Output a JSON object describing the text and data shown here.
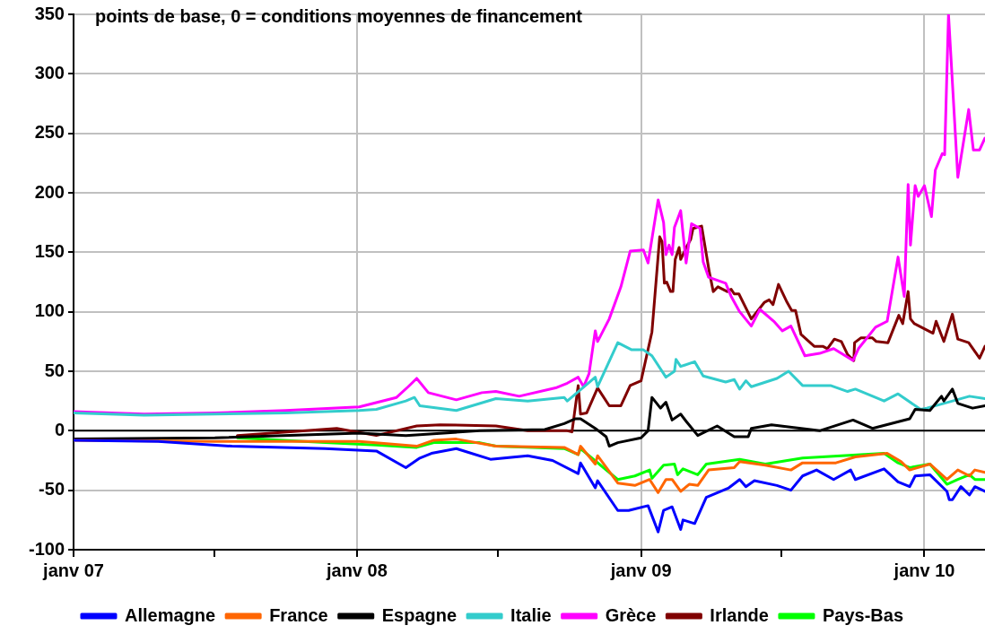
{
  "chart_data": {
    "type": "line",
    "title": "points de base, 0 = conditions moyennes de financement",
    "xlim": [
      "2007-01-01",
      "2010-03-20"
    ],
    "xticks": [
      {
        "value": "2007-01",
        "label": "janv 07"
      },
      {
        "value": "2007-07",
        "label": null
      },
      {
        "value": "2008-01",
        "label": "janv 08"
      },
      {
        "value": "2008-07",
        "label": null
      },
      {
        "value": "2009-01",
        "label": "janv 09"
      },
      {
        "value": "2009-07",
        "label": null
      },
      {
        "value": "2010-01",
        "label": "janv 10"
      }
    ],
    "ylim": [
      -100,
      350
    ],
    "yticks": [
      -100,
      -50,
      0,
      50,
      100,
      150,
      200,
      250,
      300,
      350
    ],
    "grid": true,
    "legend": "bottom",
    "marker": "none",
    "line_style": "solid",
    "ref_lines": [
      {
        "axis": "y",
        "value": 0,
        "color": "#000000"
      }
    ],
    "series": [
      {
        "name": "Allemagne",
        "color": "#0000ff",
        "x": [
          "2007-01-01",
          "2007-04-20",
          "2007-07-24",
          "2007-11-21",
          "2008-01-26",
          "2008-03-04",
          "2008-03-22",
          "2008-04-06",
          "2008-05-08",
          "2008-06-21",
          "2008-08-08",
          "2008-09-09",
          "2008-10-12",
          "2008-10-15",
          "2008-11-03",
          "2008-11-06",
          "2008-12-02",
          "2008-12-16",
          "2009-01-10",
          "2009-01-23",
          "2009-01-30",
          "2009-02-10",
          "2009-02-21",
          "2009-02-24",
          "2009-03-11",
          "2009-03-26",
          "2009-04-24",
          "2009-05-08",
          "2009-05-16",
          "2009-05-27",
          "2009-06-25",
          "2009-07-13",
          "2009-07-28",
          "2009-08-15",
          "2009-09-06",
          "2009-09-28",
          "2009-10-04",
          "2009-11-10",
          "2009-11-28",
          "2009-12-13",
          "2009-12-20",
          "2010-01-08",
          "2010-01-30",
          "2010-02-02",
          "2010-02-06",
          "2010-02-17",
          "2010-02-28",
          "2010-03-07",
          "2010-03-20"
        ],
        "values": [
          -8,
          -9,
          -13,
          -15,
          -17,
          -31,
          -23,
          -19,
          -15,
          -24,
          -21,
          -25,
          -36,
          -27,
          -48,
          -42,
          -67,
          -67,
          -63,
          -85,
          -67,
          -64,
          -83,
          -75,
          -78,
          -56,
          -48,
          -41,
          -47,
          -42,
          -46,
          -50,
          -38,
          -33,
          -41,
          -33,
          -41,
          -32,
          -43,
          -47,
          -38,
          -37,
          -51,
          -58,
          -58,
          -47,
          -54,
          -47,
          -51
        ]
      },
      {
        "name": "France",
        "color": "#ff6600",
        "x": [
          "2007-01-01",
          "2007-07-02",
          "2008-01-04",
          "2008-03-18",
          "2008-04-09",
          "2008-05-08",
          "2008-06-28",
          "2008-09-24",
          "2008-10-12",
          "2008-10-15",
          "2008-11-03",
          "2008-11-06",
          "2008-12-02",
          "2008-12-24",
          "2009-01-12",
          "2009-01-23",
          "2009-02-02",
          "2009-02-10",
          "2009-02-21",
          "2009-03-04",
          "2009-03-15",
          "2009-03-29",
          "2009-05-01",
          "2009-05-08",
          "2009-06-10",
          "2009-07-13",
          "2009-07-28",
          "2009-09-09",
          "2009-10-04",
          "2009-11-14",
          "2009-12-02",
          "2009-12-13",
          "2010-01-08",
          "2010-01-30",
          "2010-02-13",
          "2010-02-28",
          "2010-03-07",
          "2010-03-20"
        ],
        "values": [
          -8,
          -9,
          -9,
          -13,
          -8,
          -7,
          -13,
          -14,
          -20,
          -13,
          -28,
          -21,
          -44,
          -46,
          -41,
          -52,
          -41,
          -41,
          -51,
          -45,
          -46,
          -33,
          -31,
          -26,
          -29,
          -33,
          -27,
          -27,
          -22,
          -19,
          -26,
          -33,
          -28,
          -41,
          -33,
          -38,
          -33,
          -35
        ]
      },
      {
        "name": "Espagne",
        "color": "#000000",
        "x": [
          "2007-01-01",
          "2007-07-02",
          "2008-01-04",
          "2008-03-04",
          "2008-06-07",
          "2008-08-30",
          "2008-09-24",
          "2008-10-08",
          "2008-10-15",
          "2008-11-03",
          "2008-11-17",
          "2008-11-21",
          "2008-12-02",
          "2009-01-01",
          "2009-01-10",
          "2009-01-15",
          "2009-01-26",
          "2009-02-02",
          "2009-02-10",
          "2009-02-21",
          "2009-02-28",
          "2009-03-15",
          "2009-04-09",
          "2009-05-01",
          "2009-05-19",
          "2009-05-23",
          "2009-06-18",
          "2009-08-19",
          "2009-10-01",
          "2009-10-26",
          "2009-12-13",
          "2009-12-20",
          "2010-01-08",
          "2010-01-23",
          "2010-01-26",
          "2010-02-06",
          "2010-02-13",
          "2010-03-04",
          "2010-03-20"
        ],
        "values": [
          -7,
          -6,
          -2,
          -4,
          0,
          1,
          6,
          10,
          10,
          2,
          -5,
          -13,
          -10,
          -6,
          0,
          28,
          19,
          24,
          9,
          14,
          8,
          -4,
          4,
          -5,
          -5,
          2,
          5,
          0,
          9,
          2,
          10,
          18,
          17,
          29,
          25,
          35,
          23,
          19,
          21
        ]
      },
      {
        "name": "Italie",
        "color": "#33cccc",
        "x": [
          "2007-01-01",
          "2007-04-02",
          "2007-07-02",
          "2007-10-01",
          "2008-01-04",
          "2008-01-26",
          "2008-03-04",
          "2008-03-15",
          "2008-03-22",
          "2008-05-08",
          "2008-06-28",
          "2008-08-08",
          "2008-09-24",
          "2008-09-28",
          "2008-11-03",
          "2008-11-06",
          "2008-12-02",
          "2008-12-20",
          "2009-01-04",
          "2009-01-15",
          "2009-02-02",
          "2009-02-13",
          "2009-02-15",
          "2009-02-21",
          "2009-03-11",
          "2009-03-22",
          "2009-04-20",
          "2009-05-01",
          "2009-05-08",
          "2009-05-16",
          "2009-05-23",
          "2009-06-25",
          "2009-07-10",
          "2009-07-28",
          "2009-09-02",
          "2009-09-24",
          "2009-10-04",
          "2009-11-10",
          "2009-11-28",
          "2009-12-27",
          "2010-01-04",
          "2010-01-26",
          "2010-02-28",
          "2010-03-20"
        ],
        "values": [
          15,
          13,
          14,
          15,
          17,
          18,
          25,
          28,
          21,
          17,
          27,
          25,
          28,
          25,
          45,
          37,
          74,
          68,
          68,
          63,
          45,
          50,
          60,
          54,
          58,
          46,
          41,
          43,
          35,
          42,
          37,
          44,
          50,
          38,
          38,
          33,
          35,
          25,
          31,
          18,
          19,
          23,
          29,
          27
        ]
      },
      {
        "name": "Grèce",
        "color": "#ff00ff",
        "x": [
          "2007-01-01",
          "2007-04-02",
          "2007-07-02",
          "2007-10-01",
          "2008-01-04",
          "2008-02-21",
          "2008-03-07",
          "2008-03-18",
          "2008-04-02",
          "2008-05-08",
          "2008-06-10",
          "2008-06-28",
          "2008-07-28",
          "2008-09-13",
          "2008-09-28",
          "2008-10-12",
          "2008-10-19",
          "2008-10-26",
          "2008-11-03",
          "2008-11-06",
          "2008-11-21",
          "2008-12-06",
          "2008-12-18",
          "2009-01-04",
          "2009-01-10",
          "2009-01-23",
          "2009-01-30",
          "2009-02-02",
          "2009-02-06",
          "2009-02-10",
          "2009-02-13",
          "2009-02-21",
          "2009-02-28",
          "2009-03-07",
          "2009-03-18",
          "2009-03-22",
          "2009-03-29",
          "2009-04-20",
          "2009-04-27",
          "2009-05-08",
          "2009-05-23",
          "2009-06-03",
          "2009-06-21",
          "2009-07-02",
          "2009-07-13",
          "2009-07-31",
          "2009-08-19",
          "2009-09-06",
          "2009-10-01",
          "2009-10-08",
          "2009-10-30",
          "2009-11-14",
          "2009-11-28",
          "2009-12-06",
          "2009-12-11",
          "2009-12-14",
          "2009-12-20",
          "2009-12-24",
          "2010-01-01",
          "2010-01-10",
          "2010-01-15",
          "2010-01-24",
          "2010-01-27",
          "2010-02-01",
          "2010-02-13",
          "2010-02-27",
          "2010-03-05",
          "2010-03-13",
          "2010-03-20"
        ],
        "values": [
          16,
          14,
          15,
          17,
          20,
          28,
          37,
          44,
          32,
          26,
          32,
          33,
          29,
          36,
          40,
          45,
          37,
          48,
          84,
          75,
          94,
          121,
          151,
          152,
          141,
          194,
          175,
          148,
          156,
          148,
          171,
          185,
          141,
          174,
          170,
          142,
          129,
          124,
          113,
          100,
          88,
          102,
          92,
          84,
          88,
          63,
          65,
          69,
          59,
          69,
          87,
          92,
          146,
          113,
          207,
          156,
          206,
          197,
          206,
          180,
          219,
          233,
          232,
          350,
          213,
          270,
          236,
          236,
          246
        ]
      },
      {
        "name": "Irlande",
        "color": "#800000",
        "x": [
          "2007-07-31",
          "2007-12-06",
          "2008-01-26",
          "2008-03-18",
          "2008-04-17",
          "2008-06-28",
          "2008-08-08",
          "2008-09-28",
          "2008-10-04",
          "2008-10-12",
          "2008-10-15",
          "2008-10-23",
          "2008-11-06",
          "2008-11-21",
          "2008-12-06",
          "2008-12-18",
          "2009-01-01",
          "2009-01-15",
          "2009-01-25",
          "2009-01-28",
          "2009-01-31",
          "2009-02-03",
          "2009-02-08",
          "2009-02-11",
          "2009-02-14",
          "2009-02-19",
          "2009-02-21",
          "2009-03-01",
          "2009-03-06",
          "2009-03-09",
          "2009-03-20",
          "2009-03-30",
          "2009-04-04",
          "2009-04-10",
          "2009-04-22",
          "2009-04-27",
          "2009-05-01",
          "2009-05-07",
          "2009-05-23",
          "2009-06-09",
          "2009-06-15",
          "2009-06-20",
          "2009-06-27",
          "2009-07-08",
          "2009-07-14",
          "2009-07-19",
          "2009-07-26",
          "2009-08-12",
          "2009-08-23",
          "2009-08-29",
          "2009-09-07",
          "2009-09-16",
          "2009-09-24",
          "2009-10-02",
          "2009-10-03",
          "2009-10-11",
          "2009-10-26",
          "2009-10-31",
          "2009-11-15",
          "2009-11-29",
          "2009-12-04",
          "2009-12-11",
          "2009-12-14",
          "2009-12-19",
          "2010-01-12",
          "2010-01-16",
          "2010-01-26",
          "2010-02-06",
          "2010-02-13",
          "2010-02-27",
          "2010-03-13",
          "2010-03-20"
        ],
        "values": [
          -4,
          2,
          -4,
          4,
          5,
          4,
          0,
          0,
          -1,
          38,
          14,
          15,
          36,
          21,
          21,
          38,
          42,
          83,
          163,
          159,
          124,
          125,
          117,
          117,
          144,
          154,
          144,
          155,
          161,
          170,
          172,
          133,
          117,
          121,
          117,
          119,
          115,
          115,
          94,
          108,
          110,
          106,
          123,
          108,
          101,
          101,
          81,
          71,
          71,
          69,
          77,
          75,
          64,
          59,
          74,
          78,
          78,
          75,
          74,
          97,
          90,
          117,
          94,
          90,
          82,
          92,
          75,
          98,
          77,
          74,
          61,
          71
        ]
      },
      {
        "name": "Pays-Bas",
        "color": "#00ff00",
        "x": [
          "2007-07-31",
          "2007-11-21",
          "2008-01-26",
          "2008-03-18",
          "2008-04-09",
          "2008-06-07",
          "2008-06-28",
          "2008-09-24",
          "2008-10-12",
          "2008-10-15",
          "2008-12-02",
          "2008-12-24",
          "2009-01-12",
          "2009-01-15",
          "2009-01-30",
          "2009-02-13",
          "2009-02-17",
          "2009-02-24",
          "2009-03-15",
          "2009-03-26",
          "2009-05-08",
          "2009-06-10",
          "2009-07-28",
          "2009-11-10",
          "2009-11-28",
          "2009-12-13",
          "2010-01-08",
          "2010-01-30",
          "2010-02-13",
          "2010-02-28",
          "2010-03-07",
          "2010-03-20"
        ],
        "values": [
          -6,
          -10,
          -12,
          -14,
          -10,
          -10,
          -13,
          -15,
          -20,
          -15,
          -41,
          -38,
          -33,
          -40,
          -29,
          -28,
          -37,
          -32,
          -37,
          -28,
          -24,
          -28,
          -23,
          -19,
          -27,
          -31,
          -28,
          -45,
          -41,
          -37,
          -41,
          -41
        ]
      }
    ]
  }
}
